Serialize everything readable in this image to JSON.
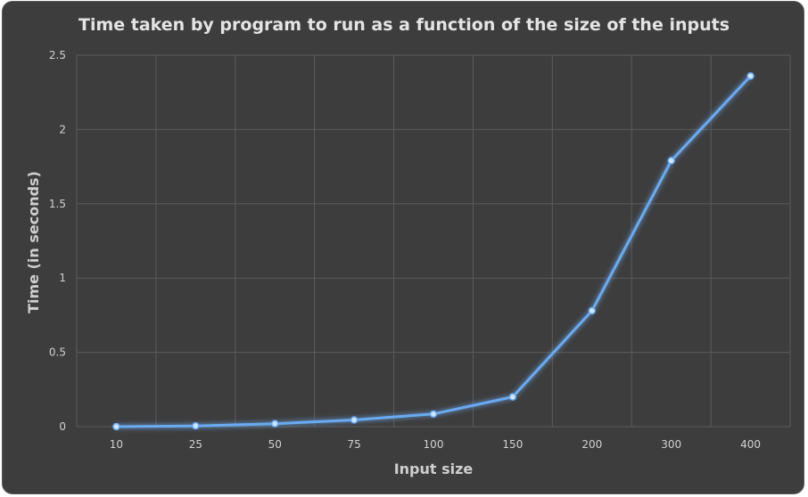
{
  "chart_data": {
    "type": "line",
    "title": "Time taken by program to run as a function of the size of the inputs",
    "xlabel": "Input size",
    "ylabel": "Time (in seconds)",
    "categories": [
      "10",
      "25",
      "50",
      "75",
      "100",
      "150",
      "200",
      "300",
      "400"
    ],
    "series": [
      {
        "values": [
          0.0,
          0.005,
          0.02,
          0.045,
          0.085,
          0.2,
          0.78,
          1.79,
          2.36
        ]
      }
    ],
    "ylim": [
      0,
      2.5
    ],
    "yticks": [
      "0",
      "0.5",
      "1",
      "1.5",
      "2",
      "2.5"
    ],
    "grid": true,
    "legend": "none",
    "colors": {
      "background": "#3d3d3d",
      "line": "#6aaaf0",
      "marker": "#cfe6ff",
      "grid": "#5c5c5c"
    }
  }
}
